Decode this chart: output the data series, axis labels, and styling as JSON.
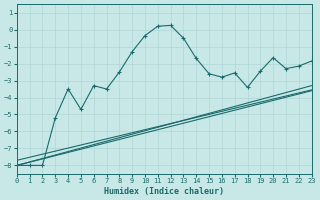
{
  "xlabel": "Humidex (Indice chaleur)",
  "bg_color": "#c8e8e8",
  "grid_color": "#b0d4d4",
  "line_color": "#1a6b6b",
  "xlim": [
    0,
    23
  ],
  "ylim": [
    -8.5,
    1.5
  ],
  "yticks": [
    1,
    0,
    -1,
    -2,
    -3,
    -4,
    -5,
    -6,
    -7,
    -8
  ],
  "xticks": [
    0,
    1,
    2,
    3,
    4,
    5,
    6,
    7,
    8,
    9,
    10,
    11,
    12,
    13,
    14,
    15,
    16,
    17,
    18,
    19,
    20,
    21,
    22,
    23
  ],
  "curve_x": [
    0,
    1,
    2,
    3,
    4,
    5,
    6,
    7,
    8,
    9,
    10,
    11,
    12,
    13,
    14,
    15,
    16,
    17,
    18,
    19,
    20,
    21,
    22,
    23
  ],
  "curve_y": [
    -8.0,
    -8.0,
    -8.0,
    -5.2,
    -3.5,
    -4.7,
    -3.3,
    -3.5,
    -2.5,
    -1.3,
    -0.35,
    0.2,
    0.25,
    -0.5,
    -1.7,
    -2.6,
    -2.8,
    -2.55,
    -3.4,
    -2.45,
    -1.65,
    -2.3,
    -2.15,
    -1.85
  ],
  "line1_x": [
    0,
    23
  ],
  "line1_y": [
    -8.0,
    -3.3
  ],
  "line2_x": [
    0,
    23
  ],
  "line2_y": [
    -8.0,
    -3.6
  ],
  "line3_x": [
    0,
    23
  ],
  "line3_y": [
    -7.7,
    -3.55
  ]
}
